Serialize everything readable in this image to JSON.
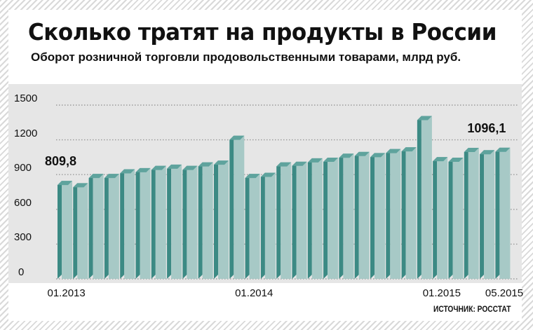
{
  "title": "Сколько тратят на продукты в России",
  "subtitle": "Оборот розничной торговли продовольственными товарами, млрд руб.",
  "source": "ИСТОЧНИК: РОССТАТ",
  "colors": {
    "bar_front": "#a7c9c6",
    "bar_side": "#3c8a84",
    "bar_top": "#5fa39d",
    "grid": "#9a9a9a",
    "chart_bg": "#e6e6e6"
  },
  "chart_data": {
    "type": "bar",
    "title": "Сколько тратят на продукты в России",
    "subtitle": "Оборот розничной торговли продовольственными товарами, млрд руб.",
    "xlabel": "",
    "ylabel": "",
    "ylim": [
      0,
      1500
    ],
    "yticks": [
      "0",
      "300",
      "600",
      "900",
      "1200",
      "1500"
    ],
    "ytick_values": [
      0,
      300,
      600,
      900,
      1200,
      1500
    ],
    "xtick_labels": [
      {
        "index": 0,
        "label": "01.2013"
      },
      {
        "index": 12,
        "label": "01.2014"
      },
      {
        "index": 24,
        "label": "01.2015"
      },
      {
        "index": 28,
        "label": "05.2015"
      }
    ],
    "grid": true,
    "categories": [
      "01.2013",
      "02.2013",
      "03.2013",
      "04.2013",
      "05.2013",
      "06.2013",
      "07.2013",
      "08.2013",
      "09.2013",
      "10.2013",
      "11.2013",
      "12.2013",
      "01.2014",
      "02.2014",
      "03.2014",
      "04.2014",
      "05.2014",
      "06.2014",
      "07.2014",
      "08.2014",
      "09.2014",
      "10.2014",
      "11.2014",
      "12.2014",
      "01.2015",
      "02.2015",
      "03.2015",
      "04.2015",
      "05.2015"
    ],
    "values": [
      809.8,
      790,
      870,
      870,
      910,
      920,
      940,
      950,
      940,
      970,
      985,
      1200,
      870,
      880,
      970,
      975,
      1005,
      1010,
      1045,
      1060,
      1050,
      1085,
      1100,
      1370,
      1015,
      1010,
      1095,
      1075,
      1096.1
    ],
    "annotations": [
      {
        "index": 0,
        "text": "809,8"
      },
      {
        "index": 28,
        "text": "1096,1"
      }
    ]
  }
}
